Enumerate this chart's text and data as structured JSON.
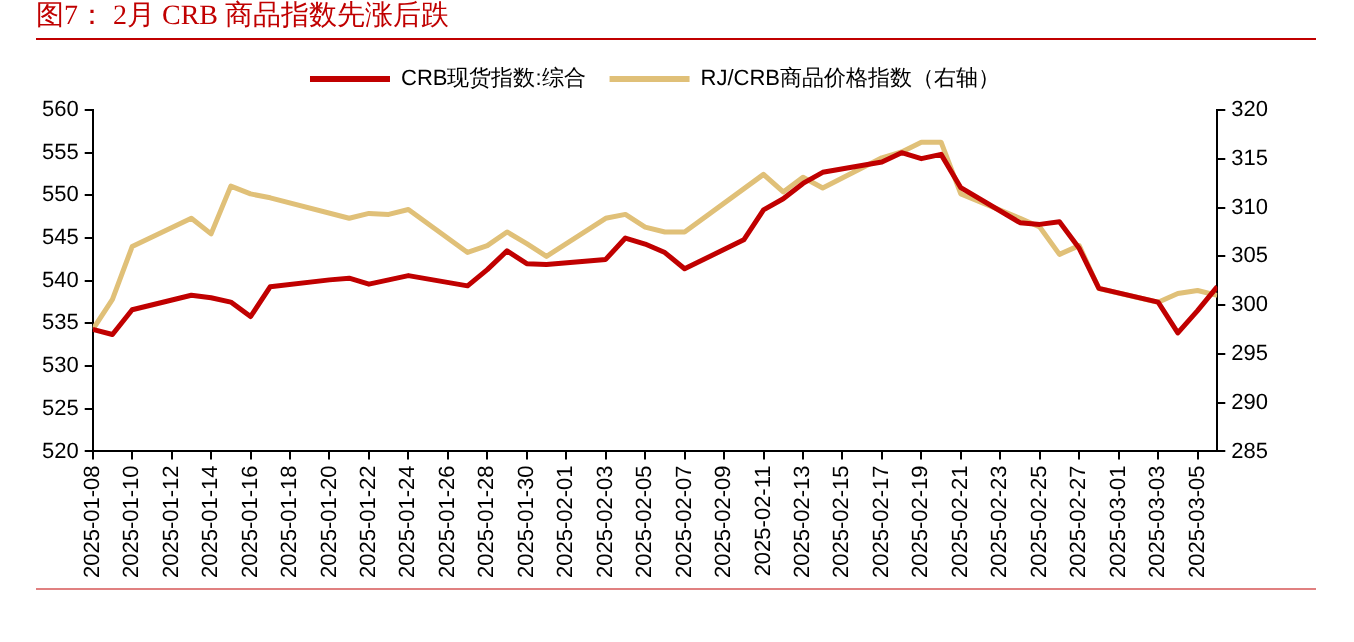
{
  "chart_data": {
    "type": "line",
    "title": "图7：  2月 CRB 商品指数先涨后跌",
    "xlim": [
      "2025-01-08",
      "2025-03-06"
    ],
    "xticks": [
      "2025-01-08",
      "2025-01-10",
      "2025-01-12",
      "2025-01-14",
      "2025-01-16",
      "2025-01-18",
      "2025-01-20",
      "2025-01-22",
      "2025-01-24",
      "2025-01-26",
      "2025-01-28",
      "2025-01-30",
      "2025-02-01",
      "2025-02-03",
      "2025-02-05",
      "2025-02-07",
      "2025-02-09",
      "2025-02-11",
      "2025-02-13",
      "2025-02-15",
      "2025-02-17",
      "2025-02-19",
      "2025-02-21",
      "2025-02-23",
      "2025-02-25",
      "2025-02-27",
      "2025-03-01",
      "2025-03-03",
      "2025-03-05"
    ],
    "ylim": [
      520,
      560
    ],
    "yticks": [
      520,
      525,
      530,
      535,
      540,
      545,
      550,
      555,
      560
    ],
    "y2lim": [
      285,
      320
    ],
    "y2ticks": [
      285,
      290,
      295,
      300,
      305,
      310,
      315,
      320
    ],
    "legend": "top",
    "grid": false,
    "marker": "none",
    "line_style": "solid",
    "series": [
      {
        "name": "CRB现货指数:综合",
        "color": "#c00000",
        "x": [
          "2025-01-08",
          "2025-01-09",
          "2025-01-10",
          "2025-01-13",
          "2025-01-14",
          "2025-01-15",
          "2025-01-16",
          "2025-01-17",
          "2025-01-20",
          "2025-01-21",
          "2025-01-22",
          "2025-01-23",
          "2025-01-24",
          "2025-01-27",
          "2025-01-28",
          "2025-01-29",
          "2025-01-30",
          "2025-01-31",
          "2025-02-03",
          "2025-02-04",
          "2025-02-05",
          "2025-02-06",
          "2025-02-07",
          "2025-02-10",
          "2025-02-11",
          "2025-02-12",
          "2025-02-13",
          "2025-02-14",
          "2025-02-17",
          "2025-02-18",
          "2025-02-19",
          "2025-02-20",
          "2025-02-21",
          "2025-02-24",
          "2025-02-25",
          "2025-02-26",
          "2025-02-27",
          "2025-02-28",
          "2025-03-03",
          "2025-03-04",
          "2025-03-05",
          "2025-03-06"
        ],
        "values": [
          534.3,
          533.7,
          536.6,
          538.3,
          538,
          537.5,
          535.8,
          539.3,
          540.1,
          540.3,
          539.6,
          540.1,
          540.6,
          539.4,
          541.3,
          543.5,
          542,
          541.9,
          542.5,
          545,
          544.3,
          543.3,
          541.4,
          544.8,
          548.3,
          549.6,
          551.4,
          552.7,
          553.9,
          555,
          554.3,
          554.8,
          550.9,
          546.8,
          546.6,
          546.9,
          543.8,
          539.1,
          537.5,
          533.9,
          536.5,
          539.3
        ]
      },
      {
        "name": "RJ/CRB商品价格指数（右轴）",
        "color": "#e0c078",
        "axis": "y2",
        "x": [
          "2025-01-08",
          "2025-01-09",
          "2025-01-10",
          "2025-01-13",
          "2025-01-14",
          "2025-01-15",
          "2025-01-16",
          "2025-01-17",
          "2025-01-21",
          "2025-01-22",
          "2025-01-23",
          "2025-01-24",
          "2025-01-27",
          "2025-01-28",
          "2025-01-29",
          "2025-01-30",
          "2025-01-31",
          "2025-02-03",
          "2025-02-04",
          "2025-02-05",
          "2025-02-06",
          "2025-02-07",
          "2025-02-11",
          "2025-02-12",
          "2025-02-13",
          "2025-02-14",
          "2025-02-17",
          "2025-02-18",
          "2025-02-19",
          "2025-02-20",
          "2025-02-21",
          "2025-02-24",
          "2025-02-25",
          "2025-02-26",
          "2025-02-27",
          "2025-02-28",
          "2025-03-03",
          "2025-03-04",
          "2025-03-05",
          "2025-03-06"
        ],
        "values": [
          297.5,
          300.6,
          306,
          308.9,
          307.3,
          312.2,
          311.4,
          311,
          308.9,
          309.4,
          309.3,
          309.8,
          305.4,
          306.1,
          307.5,
          306.3,
          305,
          308.9,
          309.3,
          308,
          307.5,
          307.5,
          313.4,
          311.6,
          313.1,
          312,
          315.1,
          315.7,
          316.7,
          316.7,
          311.4,
          308.9,
          308,
          305.2,
          306.1,
          301.7,
          300.3,
          301.2,
          301.5,
          301
        ]
      }
    ]
  }
}
